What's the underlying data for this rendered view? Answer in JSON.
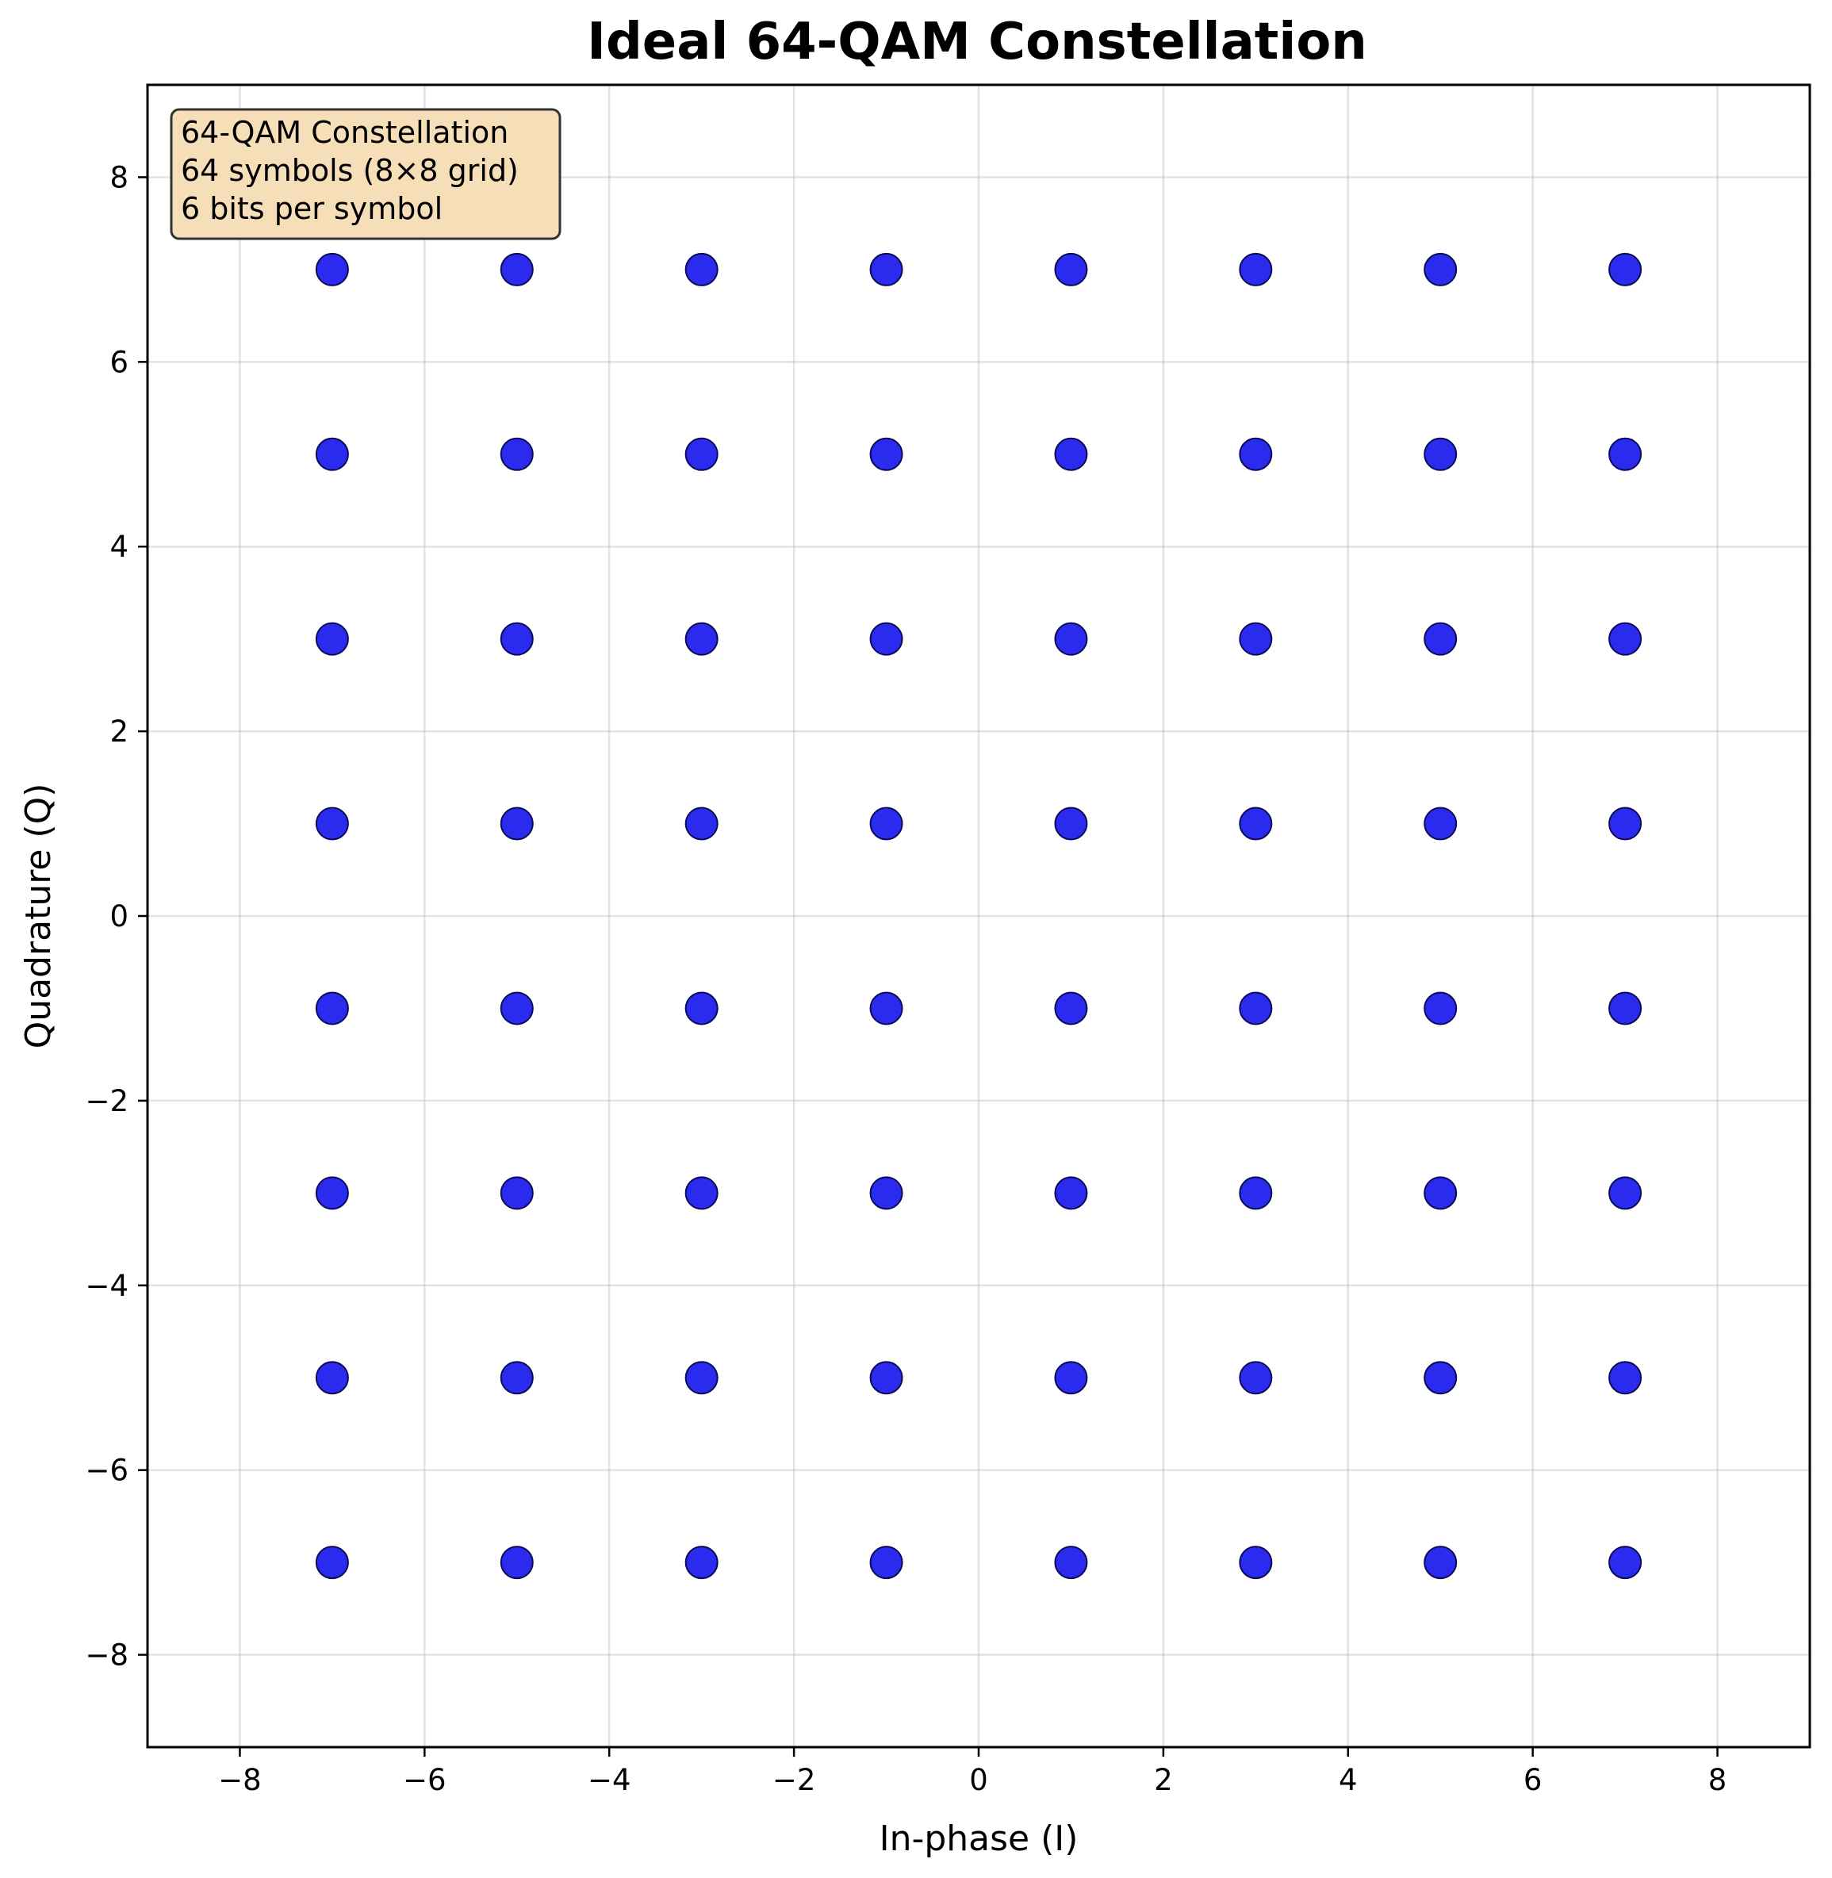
{
  "chart_data": {
    "type": "scatter",
    "title": "Ideal 64-QAM Constellation",
    "xlabel": "In-phase (I)",
    "ylabel": "Quadrature (Q)",
    "xlim": [
      -9,
      9
    ],
    "ylim": [
      -9,
      9
    ],
    "xticks": [
      -8,
      -6,
      -4,
      -2,
      0,
      2,
      4,
      6,
      8
    ],
    "yticks": [
      -8,
      -6,
      -4,
      -2,
      0,
      2,
      4,
      6,
      8
    ],
    "grid": true,
    "levels": [
      -7,
      -5,
      -3,
      -1,
      1,
      3,
      5,
      7
    ],
    "point_color": "#2b2bef",
    "point_edge_color": "#0b0b55",
    "annotation": {
      "lines": [
        "64-QAM Constellation",
        "64 symbols (8×8 grid)",
        "6 bits per symbol"
      ],
      "placement": "top-left",
      "background": "#f5deb8",
      "border": "#333333"
    }
  }
}
